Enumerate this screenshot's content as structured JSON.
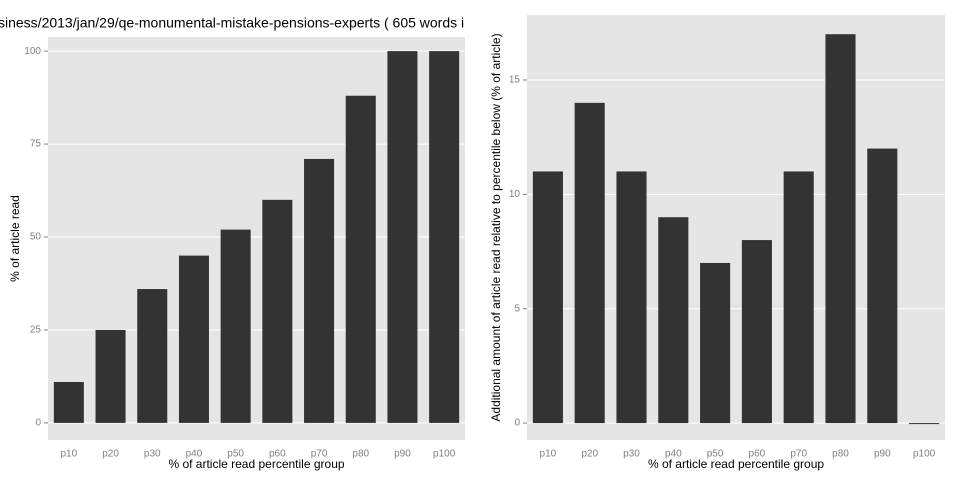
{
  "chart_data": [
    {
      "type": "bar",
      "title": "siness/2013/jan/29/qe-monumental-mistake-pensions-experts ( 605 words i",
      "x_label": "% of article read percentile group",
      "y_label": "% of article read",
      "categories": [
        "p10",
        "p20",
        "p30",
        "p40",
        "p50",
        "p60",
        "p70",
        "p80",
        "p90",
        "p100"
      ],
      "values": [
        11,
        25,
        36,
        45,
        52,
        60,
        71,
        88,
        100,
        100
      ],
      "color": "#333333",
      "ylim": [
        -4.6,
        103.8
      ],
      "yticks": [
        0,
        25,
        50,
        75,
        100
      ],
      "grid": true
    },
    {
      "type": "bar",
      "x_label": "% of article read percentile group",
      "y_label": "Additional amount of article read relative to percentile below (% of article)",
      "categories": [
        "p10",
        "p20",
        "p30",
        "p40",
        "p50",
        "p60",
        "p70",
        "p80",
        "p90",
        "p100"
      ],
      "values": [
        11,
        14,
        11,
        9,
        7,
        8,
        11,
        17,
        12,
        0
      ],
      "color": "#333333",
      "ylim": [
        -0.74,
        17.84
      ],
      "yticks": [
        0,
        5,
        10,
        15
      ],
      "grid": true
    }
  ]
}
